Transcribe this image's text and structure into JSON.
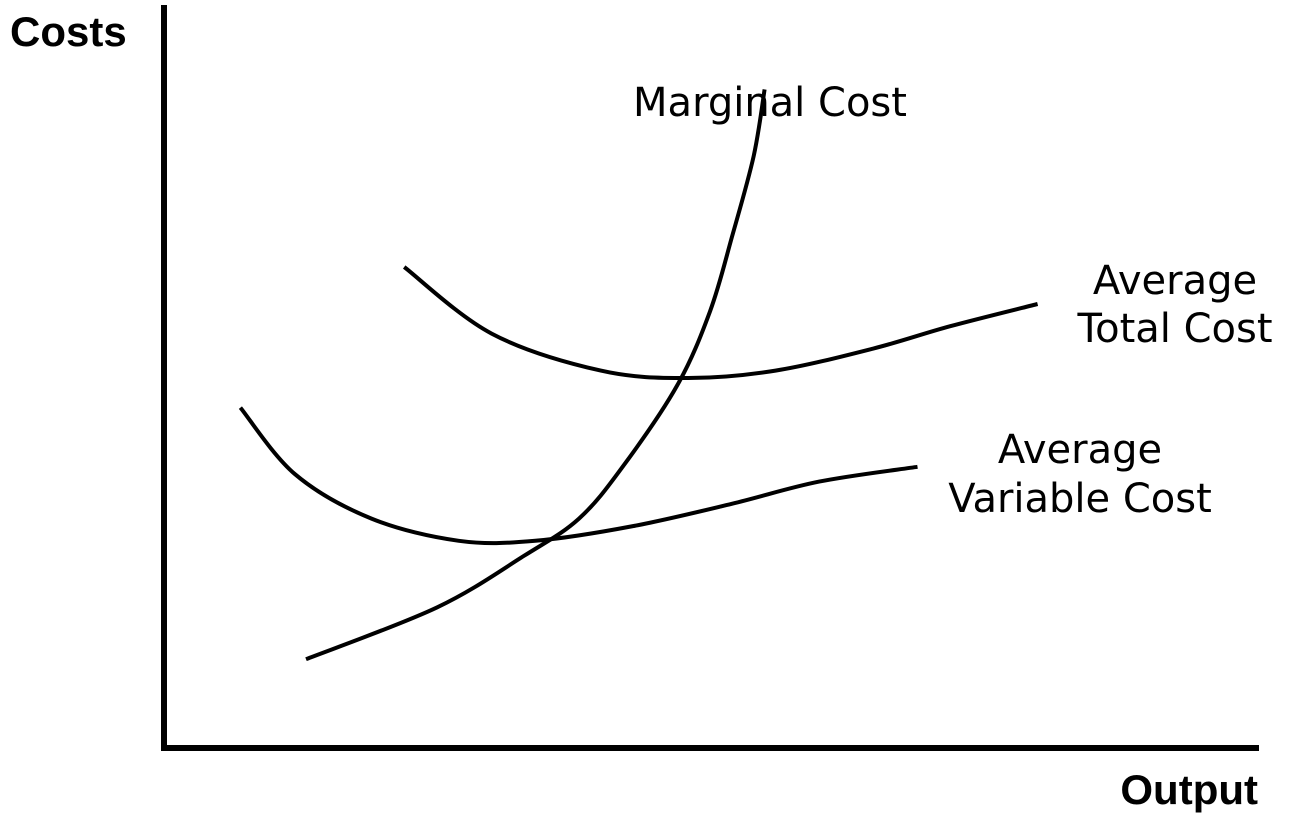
{
  "chart_data": {
    "type": "line",
    "title": "",
    "xlabel": "Output",
    "ylabel": "Costs",
    "grid": false,
    "xticks": false,
    "yticks": false,
    "line_color": "#000000",
    "series": [
      {
        "name": "Marginal Cost",
        "label_lines": [
          "Marginal Cost"
        ],
        "points": [
          [
            13,
            12
          ],
          [
            25,
            19
          ],
          [
            33,
            26
          ],
          [
            38,
            31
          ],
          [
            42,
            38
          ],
          [
            47,
            49
          ],
          [
            50,
            59
          ],
          [
            52,
            69
          ],
          [
            54,
            80
          ],
          [
            55,
            89
          ]
        ]
      },
      {
        "name": "Average Total Cost",
        "label_lines": [
          "Average",
          "Total Cost"
        ],
        "points": [
          [
            22,
            65
          ],
          [
            30,
            56
          ],
          [
            40,
            51
          ],
          [
            48,
            50
          ],
          [
            56,
            51
          ],
          [
            65,
            54
          ],
          [
            72,
            57
          ],
          [
            80,
            60
          ]
        ]
      },
      {
        "name": "Average Variable Cost",
        "label_lines": [
          "Average",
          "Variable Cost"
        ],
        "points": [
          [
            7,
            46
          ],
          [
            12,
            37
          ],
          [
            19,
            31
          ],
          [
            27,
            28
          ],
          [
            34,
            28
          ],
          [
            43,
            30
          ],
          [
            52,
            33
          ],
          [
            60,
            36
          ],
          [
            69,
            38
          ]
        ]
      }
    ]
  }
}
